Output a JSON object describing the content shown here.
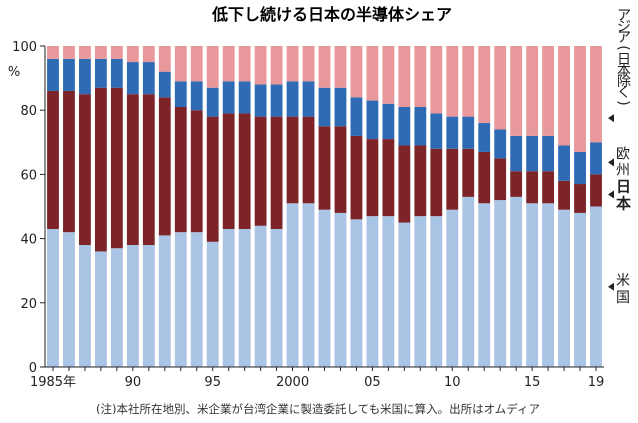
{
  "chart_data": {
    "type": "bar",
    "stacked": true,
    "title": "低下し続ける日本の半導体シェア",
    "yunit": "%",
    "ylim": [
      0,
      100
    ],
    "yticks": [
      0,
      20,
      40,
      60,
      80,
      100
    ],
    "x": [
      1985,
      1986,
      1987,
      1988,
      1989,
      1990,
      1991,
      1992,
      1993,
      1994,
      1995,
      1996,
      1997,
      1998,
      1999,
      2000,
      2001,
      2002,
      2003,
      2004,
      2005,
      2006,
      2007,
      2008,
      2009,
      2010,
      2011,
      2012,
      2013,
      2014,
      2015,
      2016,
      2017,
      2018,
      2019
    ],
    "xtick_labels": [
      {
        "x": 1985,
        "label": "1985年"
      },
      {
        "x": 1990,
        "label": "90"
      },
      {
        "x": 1995,
        "label": "95"
      },
      {
        "x": 2000,
        "label": "2000"
      },
      {
        "x": 2005,
        "label": "05"
      },
      {
        "x": 2010,
        "label": "10"
      },
      {
        "x": 2015,
        "label": "15"
      },
      {
        "x": 2019,
        "label": "19"
      }
    ],
    "series": [
      {
        "name": "米国",
        "color": "#a9c4e4",
        "values": [
          43,
          42,
          38,
          36,
          37,
          38,
          38,
          41,
          42,
          42,
          39,
          43,
          43,
          44,
          43,
          51,
          51,
          49,
          48,
          46,
          47,
          47,
          45,
          47,
          47,
          49,
          53,
          51,
          52,
          53,
          51,
          51,
          49,
          48,
          50
        ]
      },
      {
        "name": "日本",
        "color": "#7d2428",
        "values": [
          43,
          44,
          47,
          51,
          50,
          47,
          47,
          43,
          39,
          38,
          39,
          36,
          36,
          34,
          35,
          27,
          27,
          26,
          27,
          26,
          24,
          24,
          24,
          22,
          21,
          19,
          15,
          16,
          13,
          8,
          10,
          10,
          9,
          9,
          10
        ]
      },
      {
        "name": "欧州",
        "color": "#2e6bb4",
        "values": [
          10,
          10,
          11,
          9,
          9,
          10,
          10,
          8,
          8,
          9,
          9,
          10,
          10,
          10,
          10,
          11,
          11,
          12,
          12,
          12,
          12,
          11,
          12,
          12,
          11,
          10,
          10,
          9,
          9,
          11,
          11,
          11,
          11,
          10,
          10
        ]
      },
      {
        "name": "アジア(日本除く)",
        "color": "#e8989a",
        "values": [
          4,
          4,
          4,
          4,
          4,
          5,
          5,
          8,
          11,
          11,
          13,
          11,
          11,
          12,
          12,
          11,
          11,
          13,
          13,
          16,
          17,
          18,
          19,
          19,
          21,
          22,
          22,
          24,
          26,
          28,
          28,
          28,
          31,
          33,
          30
        ]
      }
    ],
    "note": "(注)本社所在地別、米企業が台湾企業に製造委託しても米国に算入。出所はオムディア"
  }
}
